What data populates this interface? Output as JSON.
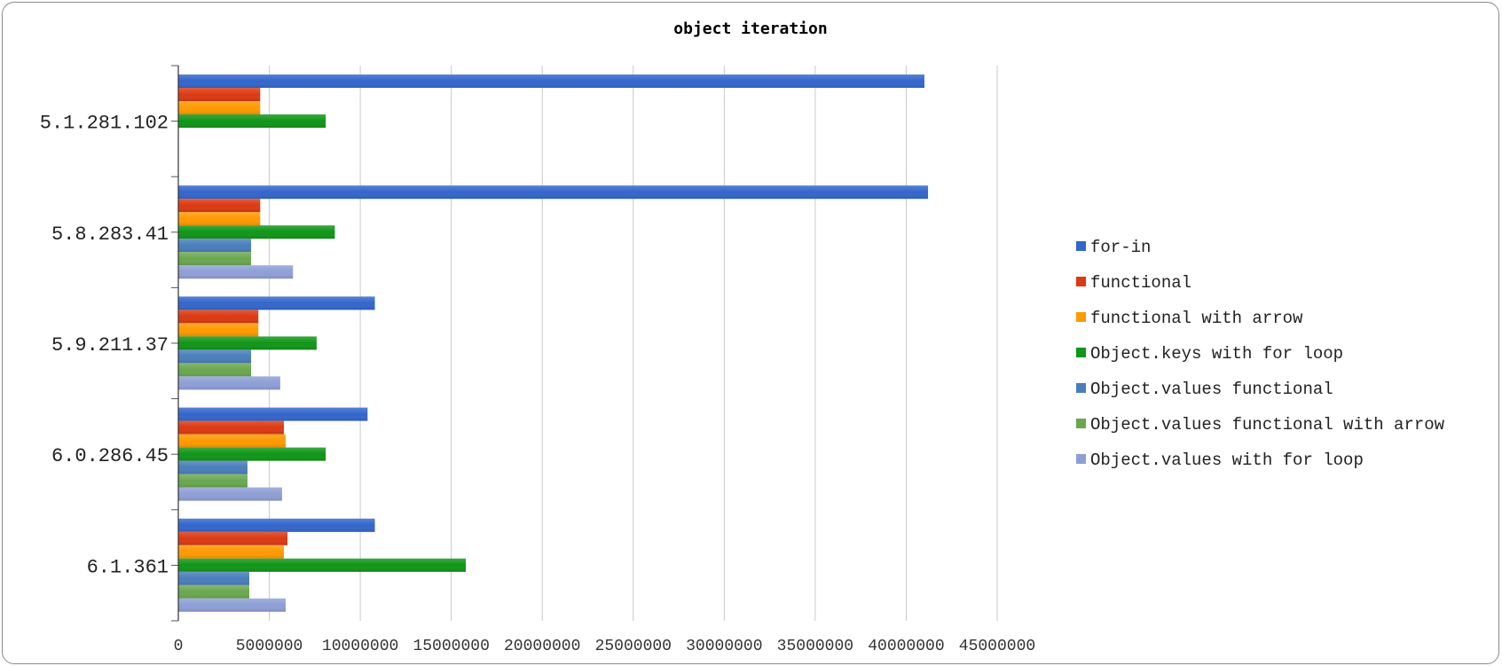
{
  "chart_data": {
    "type": "bar",
    "orientation": "horizontal",
    "title": "object iteration",
    "xlabel": "",
    "ylabel": "",
    "categories": [
      "5.1.281.102",
      "5.8.283.41",
      "5.9.211.37",
      "6.0.286.45",
      "6.1.361"
    ],
    "xlim": [
      0,
      45000000
    ],
    "x_ticks": [
      0,
      5000000,
      10000000,
      15000000,
      20000000,
      25000000,
      30000000,
      35000000,
      40000000,
      45000000
    ],
    "grid": "vertical",
    "legend": "right",
    "series": [
      {
        "name": "for-in",
        "color": "#3366cc",
        "values": [
          41000000,
          41200000,
          10800000,
          10400000,
          10800000
        ]
      },
      {
        "name": "functional",
        "color": "#dc3912",
        "values": [
          4500000,
          4500000,
          4400000,
          5800000,
          6000000
        ]
      },
      {
        "name": "functional with arrow",
        "color": "#ff9900",
        "values": [
          4500000,
          4500000,
          4400000,
          5900000,
          5800000
        ]
      },
      {
        "name": "Object.keys with for loop",
        "color": "#109618",
        "values": [
          8100000,
          8600000,
          7600000,
          8100000,
          15800000
        ]
      },
      {
        "name": "Object.values functional",
        "color": "#4a7ebb",
        "values": [
          null,
          4000000,
          4000000,
          3800000,
          3900000
        ]
      },
      {
        "name": "Object.values functional with arrow",
        "color": "#6aa84f",
        "values": [
          null,
          4000000,
          4000000,
          3800000,
          3900000
        ]
      },
      {
        "name": "Object.values with for loop",
        "color": "#8e9fd6",
        "values": [
          null,
          6300000,
          5600000,
          5700000,
          5900000
        ]
      }
    ]
  }
}
